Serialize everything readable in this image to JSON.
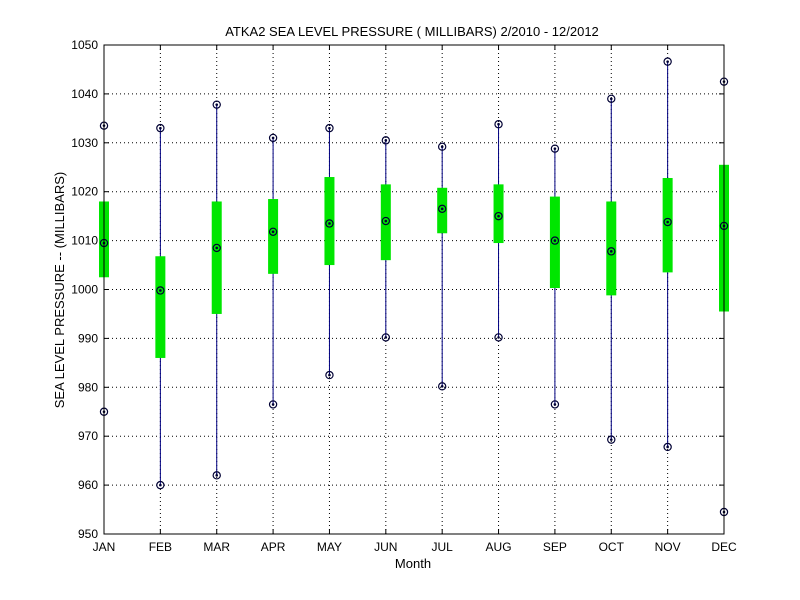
{
  "chart_data": {
    "type": "boxplot",
    "title": "ATKA2  SEA LEVEL PRESSURE ( MILLIBARS) 2/2010 - 12/2012",
    "xlabel": "Month",
    "ylabel": "SEA LEVEL PRESSURE -- (MILLIBARS)",
    "ylim": [
      950,
      1050
    ],
    "yticks": [
      950,
      960,
      970,
      980,
      990,
      1000,
      1010,
      1020,
      1030,
      1040,
      1050
    ],
    "grid": true,
    "categories": [
      "JAN",
      "FEB",
      "MAR",
      "APR",
      "MAY",
      "JUN",
      "JUL",
      "AUG",
      "SEP",
      "OCT",
      "NOV",
      "DEC"
    ],
    "series": [
      {
        "min": 975.0,
        "q1": 1002.5,
        "median": 1009.5,
        "q3": 1018.0,
        "max": 1033.5
      },
      {
        "min": 960.0,
        "q1": 986.0,
        "median": 999.8,
        "q3": 1006.8,
        "max": 1033.0
      },
      {
        "min": 962.0,
        "q1": 995.0,
        "median": 1008.5,
        "q3": 1018.0,
        "max": 1037.8
      },
      {
        "min": 976.5,
        "q1": 1003.2,
        "median": 1011.8,
        "q3": 1018.5,
        "max": 1031.0
      },
      {
        "min": 982.5,
        "q1": 1005.0,
        "median": 1013.5,
        "q3": 1023.0,
        "max": 1033.0
      },
      {
        "min": 990.2,
        "q1": 1006.0,
        "median": 1014.0,
        "q3": 1021.5,
        "max": 1030.5
      },
      {
        "min": 980.2,
        "q1": 1011.5,
        "median": 1016.5,
        "q3": 1020.8,
        "max": 1029.2
      },
      {
        "min": 990.2,
        "q1": 1009.5,
        "median": 1015.0,
        "q3": 1021.5,
        "max": 1033.8
      },
      {
        "min": 976.5,
        "q1": 1000.3,
        "median": 1010.0,
        "q3": 1019.0,
        "max": 1028.8
      },
      {
        "min": 969.3,
        "q1": 998.8,
        "median": 1007.8,
        "q3": 1018.0,
        "max": 1039.0
      },
      {
        "min": 967.8,
        "q1": 1003.5,
        "median": 1013.8,
        "q3": 1022.8,
        "max": 1046.6
      },
      {
        "min": 954.5,
        "q1": 995.5,
        "median": 1013.0,
        "q3": 1025.5,
        "max": 1042.5
      }
    ],
    "colors": {
      "box": "#00e600",
      "whisker": "#000080",
      "marker": "#000033",
      "grid": "#000000"
    }
  }
}
